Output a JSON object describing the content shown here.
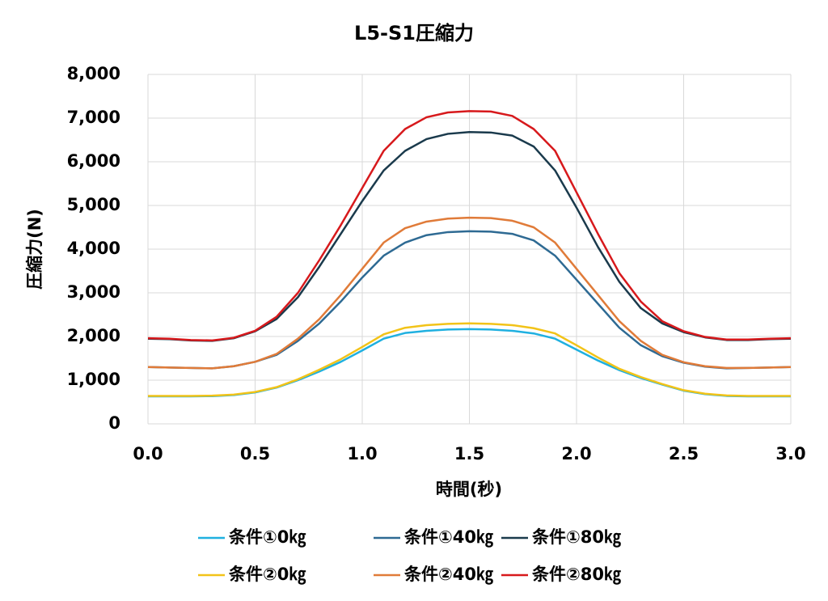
{
  "chart_data": {
    "type": "line",
    "title": "L5-S1圧縮力",
    "x_label": "時間(秒)",
    "y_label": "圧縮力(N)",
    "x": [
      0,
      0.1,
      0.2,
      0.3,
      0.4,
      0.5,
      0.6,
      0.7,
      0.8,
      0.9,
      1.0,
      1.1,
      1.2,
      1.3,
      1.4,
      1.5,
      1.6,
      1.7,
      1.8,
      1.9,
      2.0,
      2.1,
      2.2,
      2.3,
      2.4,
      2.5,
      2.6,
      2.7,
      2.8,
      2.9,
      3.0
    ],
    "series": [
      {
        "name": "条件①0㎏",
        "color": "#1fb0e0",
        "values": [
          630,
          630,
          630,
          635,
          660,
          720,
          830,
          1000,
          1200,
          1420,
          1680,
          1950,
          2080,
          2130,
          2160,
          2170,
          2160,
          2130,
          2070,
          1950,
          1700,
          1450,
          1230,
          1050,
          900,
          760,
          680,
          640,
          630,
          630,
          630
        ]
      },
      {
        "name": "条件①40㎏",
        "color": "#2e6a93",
        "values": [
          1300,
          1290,
          1280,
          1270,
          1320,
          1420,
          1580,
          1900,
          2300,
          2800,
          3350,
          3850,
          4150,
          4320,
          4390,
          4410,
          4400,
          4350,
          4200,
          3850,
          3300,
          2750,
          2200,
          1800,
          1550,
          1400,
          1310,
          1270,
          1280,
          1290,
          1300
        ]
      },
      {
        "name": "条件①80㎏",
        "color": "#1a3a4c",
        "values": [
          1950,
          1940,
          1910,
          1900,
          1960,
          2120,
          2400,
          2900,
          3600,
          4350,
          5100,
          5800,
          6250,
          6520,
          6640,
          6680,
          6670,
          6600,
          6350,
          5800,
          4950,
          4050,
          3250,
          2650,
          2300,
          2100,
          1980,
          1920,
          1920,
          1940,
          1950
        ]
      },
      {
        "name": "条件②0㎏",
        "color": "#f2c318",
        "values": [
          640,
          640,
          640,
          645,
          670,
          730,
          840,
          1020,
          1240,
          1480,
          1760,
          2050,
          2200,
          2260,
          2290,
          2300,
          2290,
          2260,
          2190,
          2070,
          1800,
          1520,
          1260,
          1070,
          910,
          770,
          690,
          650,
          640,
          640,
          640
        ]
      },
      {
        "name": "条件②40㎏",
        "color": "#e07b39",
        "values": [
          1300,
          1290,
          1280,
          1270,
          1320,
          1420,
          1600,
          1950,
          2400,
          2950,
          3550,
          4150,
          4480,
          4630,
          4700,
          4720,
          4710,
          4650,
          4500,
          4150,
          3550,
          2950,
          2350,
          1900,
          1580,
          1410,
          1320,
          1280,
          1280,
          1290,
          1300
        ]
      },
      {
        "name": "条件②80㎏",
        "color": "#d7191c",
        "values": [
          1960,
          1950,
          1920,
          1910,
          1970,
          2130,
          2450,
          3000,
          3750,
          4550,
          5400,
          6250,
          6750,
          7020,
          7130,
          7160,
          7150,
          7050,
          6750,
          6250,
          5300,
          4350,
          3450,
          2800,
          2350,
          2120,
          1990,
          1930,
          1930,
          1950,
          1960
        ]
      }
    ],
    "xlim": [
      0,
      3
    ],
    "ylim": [
      0,
      8000
    ],
    "xticks": [
      {
        "value": 0,
        "label": "0.0"
      },
      0.5,
      {
        "value": 1,
        "label": "1.0"
      },
      1.5,
      {
        "value": 2,
        "label": "2.0"
      },
      2.5,
      {
        "value": 3,
        "label": "3.0"
      }
    ],
    "yticks": [
      0,
      {
        "value": 1000,
        "label": "1,000"
      },
      {
        "value": 2000,
        "label": "2,000"
      },
      {
        "value": 3000,
        "label": "3,000"
      },
      {
        "value": 4000,
        "label": "4,000"
      },
      {
        "value": 5000,
        "label": "5,000"
      },
      {
        "value": 6000,
        "label": "6,000"
      },
      {
        "value": 7000,
        "label": "7,000"
      },
      {
        "value": 8000,
        "label": "8,000"
      }
    ],
    "grid": true,
    "legend": "bottom"
  }
}
